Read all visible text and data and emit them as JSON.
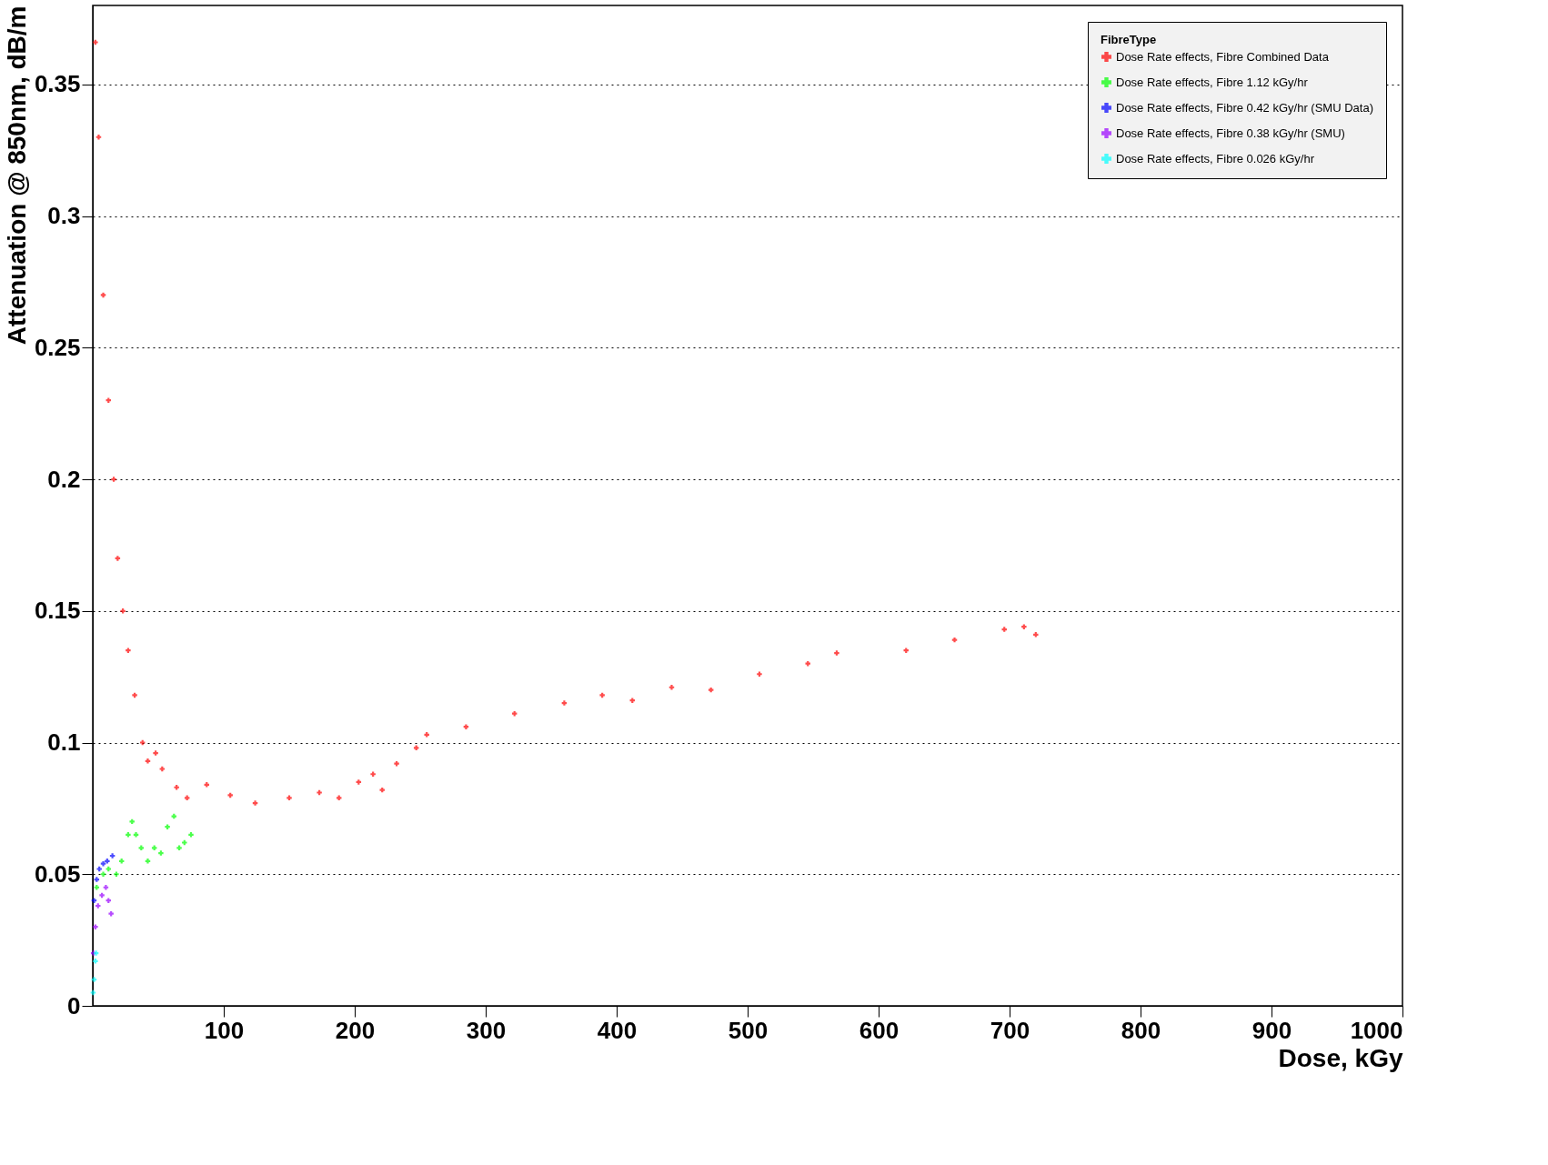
{
  "chart_data": {
    "type": "scatter",
    "xlabel": "Dose, kGy",
    "ylabel": "Attenuation @ 850nm, dB/m",
    "legend_title": "FibreType",
    "xlim": [
      0,
      1000
    ],
    "ylim": [
      0,
      0.38
    ],
    "xticks": [
      100,
      200,
      300,
      400,
      500,
      600,
      700,
      800,
      900,
      1000
    ],
    "yticks": [
      0,
      0.05,
      0.1,
      0.15,
      0.2,
      0.25,
      0.3,
      0.35
    ],
    "grid": "y",
    "legend": "top right",
    "marker": "cross",
    "series": [
      {
        "name": "Dose Rate effects, Fibre Combined Data",
        "color": "#ff0000",
        "x": [
          2,
          4.5,
          8,
          12,
          16,
          19,
          23,
          27,
          32,
          38,
          42,
          48,
          53,
          64,
          72,
          87,
          105,
          124,
          150,
          173,
          188,
          203,
          214,
          221,
          232,
          247,
          255,
          285,
          322,
          360,
          389,
          412,
          442,
          472,
          509,
          546,
          568,
          621,
          658,
          696,
          711,
          720
        ],
        "values": [
          0.366,
          0.33,
          0.27,
          0.23,
          0.2,
          0.17,
          0.15,
          0.135,
          0.118,
          0.1,
          0.093,
          0.096,
          0.09,
          0.083,
          0.079,
          0.084,
          0.08,
          0.077,
          0.079,
          0.081,
          0.079,
          0.085,
          0.088,
          0.082,
          0.092,
          0.098,
          0.103,
          0.106,
          0.111,
          0.115,
          0.118,
          0.116,
          0.121,
          0.12,
          0.126,
          0.13,
          0.134,
          0.135,
          0.139,
          0.143,
          0.144,
          0.141
        ]
      },
      {
        "name": "Dose Rate effects, Fibre 1.12 kGy/hr",
        "color": "#00ff00",
        "x": [
          3,
          8,
          12,
          18,
          22,
          27,
          30,
          33,
          37,
          42,
          47,
          52,
          57,
          62,
          66,
          70,
          75
        ],
        "values": [
          0.045,
          0.05,
          0.052,
          0.05,
          0.055,
          0.065,
          0.07,
          0.065,
          0.06,
          0.055,
          0.06,
          0.058,
          0.068,
          0.072,
          0.06,
          0.062,
          0.065
        ]
      },
      {
        "name": "Dose Rate effects, Fibre 0.42 kGy/hr (SMU Data)",
        "color": "#0000ff",
        "x": [
          1,
          3,
          5,
          8,
          11,
          15
        ],
        "values": [
          0.04,
          0.048,
          0.052,
          0.054,
          0.055,
          0.057
        ]
      },
      {
        "name": "Dose Rate effects, Fibre 0.38 kGy/hr (SMU)",
        "color": "#9900ff",
        "x": [
          0.5,
          2,
          4,
          7,
          10,
          12,
          14
        ],
        "values": [
          0.02,
          0.03,
          0.038,
          0.042,
          0.045,
          0.04,
          0.035
        ]
      },
      {
        "name": "Dose Rate effects, Fibre 0.026 kGy/hr",
        "color": "#00ffff",
        "x": [
          0.3,
          1,
          2,
          2.5
        ],
        "values": [
          0.005,
          0.01,
          0.017,
          0.02
        ]
      }
    ]
  }
}
